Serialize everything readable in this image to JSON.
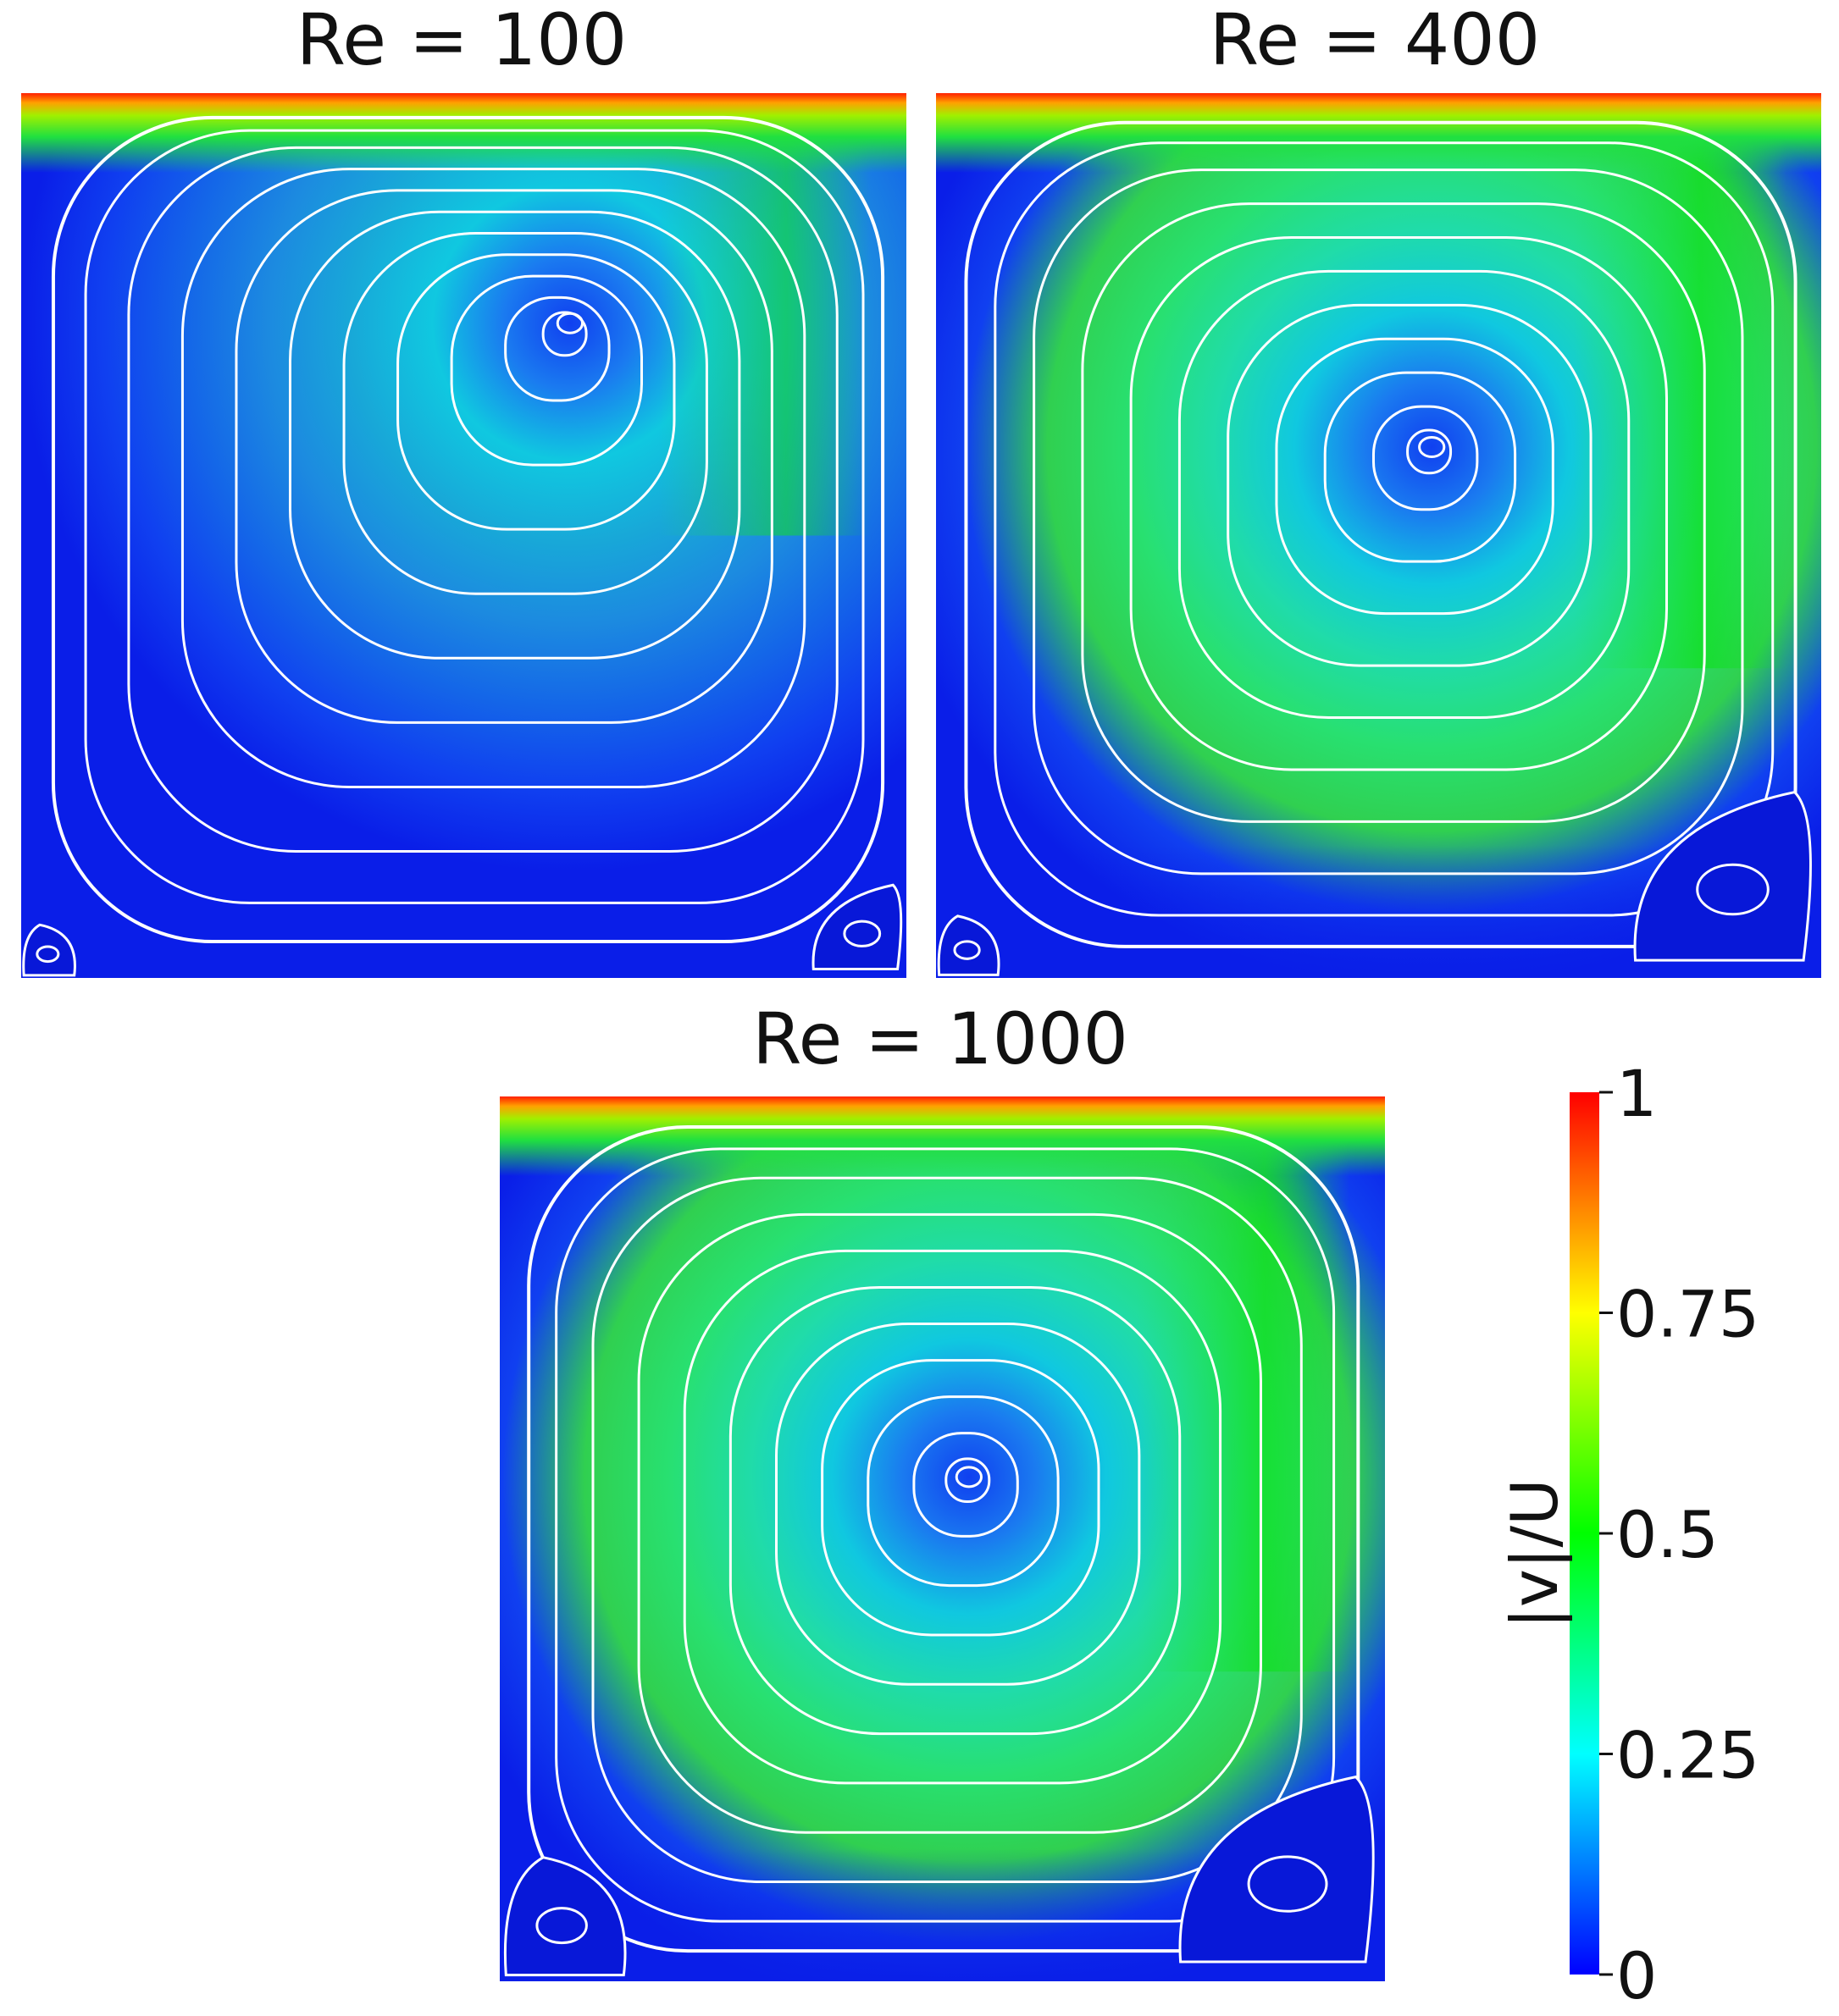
{
  "chart_data": {
    "type": "heatmap",
    "description_of_kind": "velocity-magnitude contour with streamlines, lid-driven cavity",
    "panels": [
      {
        "title": "Re = 100",
        "vortex_center": [
          0.62,
          0.74
        ],
        "streamline_levels": [
          0.04,
          0.1,
          0.18,
          0.28,
          0.38,
          0.48,
          0.58,
          0.68,
          0.78,
          0.88,
          0.95
        ],
        "secondary_vortices": [
          {
            "corner": "bottom-left",
            "size": 0.06
          },
          {
            "corner": "bottom-right",
            "size": 0.1
          }
        ]
      },
      {
        "title": "Re = 400",
        "vortex_center": [
          0.56,
          0.6
        ],
        "streamline_levels": [
          0.04,
          0.1,
          0.18,
          0.28,
          0.38,
          0.48,
          0.58,
          0.68,
          0.78,
          0.88,
          0.95
        ],
        "secondary_vortices": [
          {
            "corner": "bottom-left",
            "size": 0.07
          },
          {
            "corner": "bottom-right",
            "size": 0.2
          }
        ]
      },
      {
        "title": "Re = 1000",
        "vortex_center": [
          0.53,
          0.57
        ],
        "streamline_levels": [
          0.04,
          0.1,
          0.18,
          0.28,
          0.38,
          0.48,
          0.58,
          0.68,
          0.78,
          0.88,
          0.95
        ],
        "secondary_vortices": [
          {
            "corner": "bottom-left",
            "size": 0.14
          },
          {
            "corner": "bottom-right",
            "size": 0.22
          }
        ]
      }
    ],
    "colorbar": {
      "label": "|v|/U",
      "ticks": [
        0,
        0.25,
        0.5,
        0.75,
        1
      ],
      "tick_labels": [
        "0",
        "0.25",
        "0.5",
        "0.75",
        "1"
      ],
      "range": [
        0,
        1
      ],
      "colormap": [
        "#0000ff",
        "#00ffff",
        "#00ff00",
        "#ffff00",
        "#ff0000"
      ]
    },
    "streamline_color": "#ffffff"
  }
}
